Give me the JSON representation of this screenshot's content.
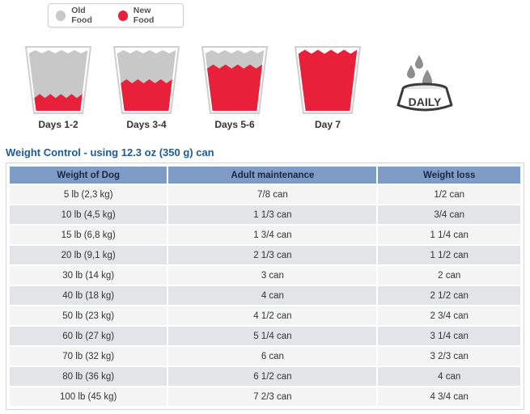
{
  "legend": {
    "old_label": "Old Food",
    "new_label": "New Food",
    "old_color": "#c8c8c8",
    "new_color": "#e8203a"
  },
  "stages": [
    {
      "label": "Days 1-2",
      "new_fraction": 0.25
    },
    {
      "label": "Days 3-4",
      "new_fraction": 0.5
    },
    {
      "label": "Days 5-6",
      "new_fraction": 0.75
    },
    {
      "label": "Day 7",
      "new_fraction": 1.0
    }
  ],
  "daily_icon": {
    "icon": "dog-bowl-water-icon",
    "text": "DAILY"
  },
  "section_title": "Weight Control - using 12.3 oz (350 g) can",
  "table": {
    "headers": [
      "Weight of Dog",
      "Adult maintenance",
      "Weight loss"
    ],
    "rows": [
      [
        "5 lb (2,3 kg)",
        "7/8 can",
        "1/2 can"
      ],
      [
        "10 lb (4,5 kg)",
        "1 1/3 can",
        "3/4 can"
      ],
      [
        "15 lb (6,8 kg)",
        "1 3/4 can",
        "1 1/4 can"
      ],
      [
        "20 lb (9,1 kg)",
        "2 1/3 can",
        "1 1/2 can"
      ],
      [
        "30 lb (14 kg)",
        "3 can",
        "2 can"
      ],
      [
        "40 lb (18 kg)",
        "4 can",
        "2 1/2 can"
      ],
      [
        "50 lb (23 kg)",
        "4 1/2 can",
        "2 3/4 can"
      ],
      [
        "60 lb (27 kg)",
        "5 1/4 can",
        "3 1/4 can"
      ],
      [
        "70 lb (32 kg)",
        "6 can",
        "3 2/3 can"
      ],
      [
        "80 lb (36 kg)",
        "6 1/2 can",
        "4 can"
      ],
      [
        "100 lb (45 kg)",
        "7 2/3 can",
        "4 3/4 can"
      ]
    ]
  }
}
